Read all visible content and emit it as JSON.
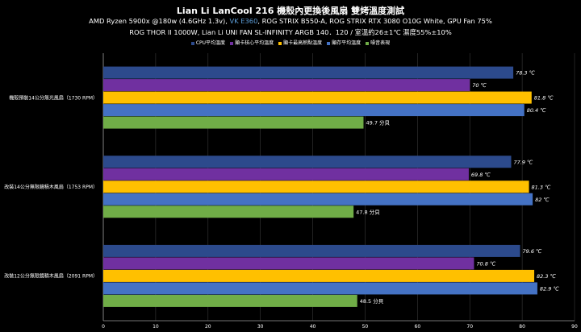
{
  "chart_data": {
    "type": "bar",
    "orientation": "horizontal",
    "title": "Lian Li LanCool 216 機殼內更換後風扇 雙烤溫度測試",
    "subtitle_line1": {
      "before": "AMD Ryzen 5900x @180w (4.6GHz 1.3v), ",
      "highlight": "VK E360",
      "after": ", ROG STRIX B550-A, ROG STRIX RTX 3080 O10G White, GPU Fan 75%"
    },
    "subtitle_line2": "ROG THOR II 1000W, Lian Li UNI FAN SL-INFINITY ARGB 140．120 / 室溫約26±1℃ 濕度55%±10%",
    "categories": [
      "機殼預裝14公分無光風扇（1730 RPM）",
      "改裝14公分無限鏡積木風扇（1753 RPM）",
      "改裝12公分無限鏡積木風扇（2091 RPM）"
    ],
    "series": [
      {
        "name": "CPU平均溫度",
        "color": "#2c4a8c",
        "values": [
          78.3,
          77.9,
          79.6
        ],
        "labels": [
          "78.3 ℃",
          "77.9 ℃",
          "79.6 ℃"
        ]
      },
      {
        "name": "顯卡核心平均溫度",
        "color": "#7030a0",
        "values": [
          70,
          69.8,
          70.8
        ],
        "labels": [
          "70 ℃",
          "69.8 ℃",
          "70.8 ℃"
        ]
      },
      {
        "name": "顯卡最高熱點溫度",
        "color": "#ffc000",
        "values": [
          81.8,
          81.3,
          82.3
        ],
        "labels": [
          "81.8 ℃",
          "81.3 ℃",
          "82.3 ℃"
        ]
      },
      {
        "name": "顯存平均溫度",
        "color": "#4472c4",
        "values": [
          80.4,
          82,
          82.9
        ],
        "labels": [
          "80.4 ℃",
          "82 ℃",
          "82.9 ℃"
        ]
      },
      {
        "name": "噪音表現",
        "color": "#70ad47",
        "values": [
          49.7,
          47.8,
          48.5
        ],
        "labels": [
          "49.7 分貝",
          "47.8 分貝",
          "48.5 分貝"
        ]
      }
    ],
    "xlim": [
      0,
      90
    ],
    "xticks": [
      "0",
      "10",
      "20",
      "30",
      "40",
      "50",
      "60",
      "70",
      "80",
      "90"
    ],
    "grid": true,
    "legend_position": "top"
  }
}
